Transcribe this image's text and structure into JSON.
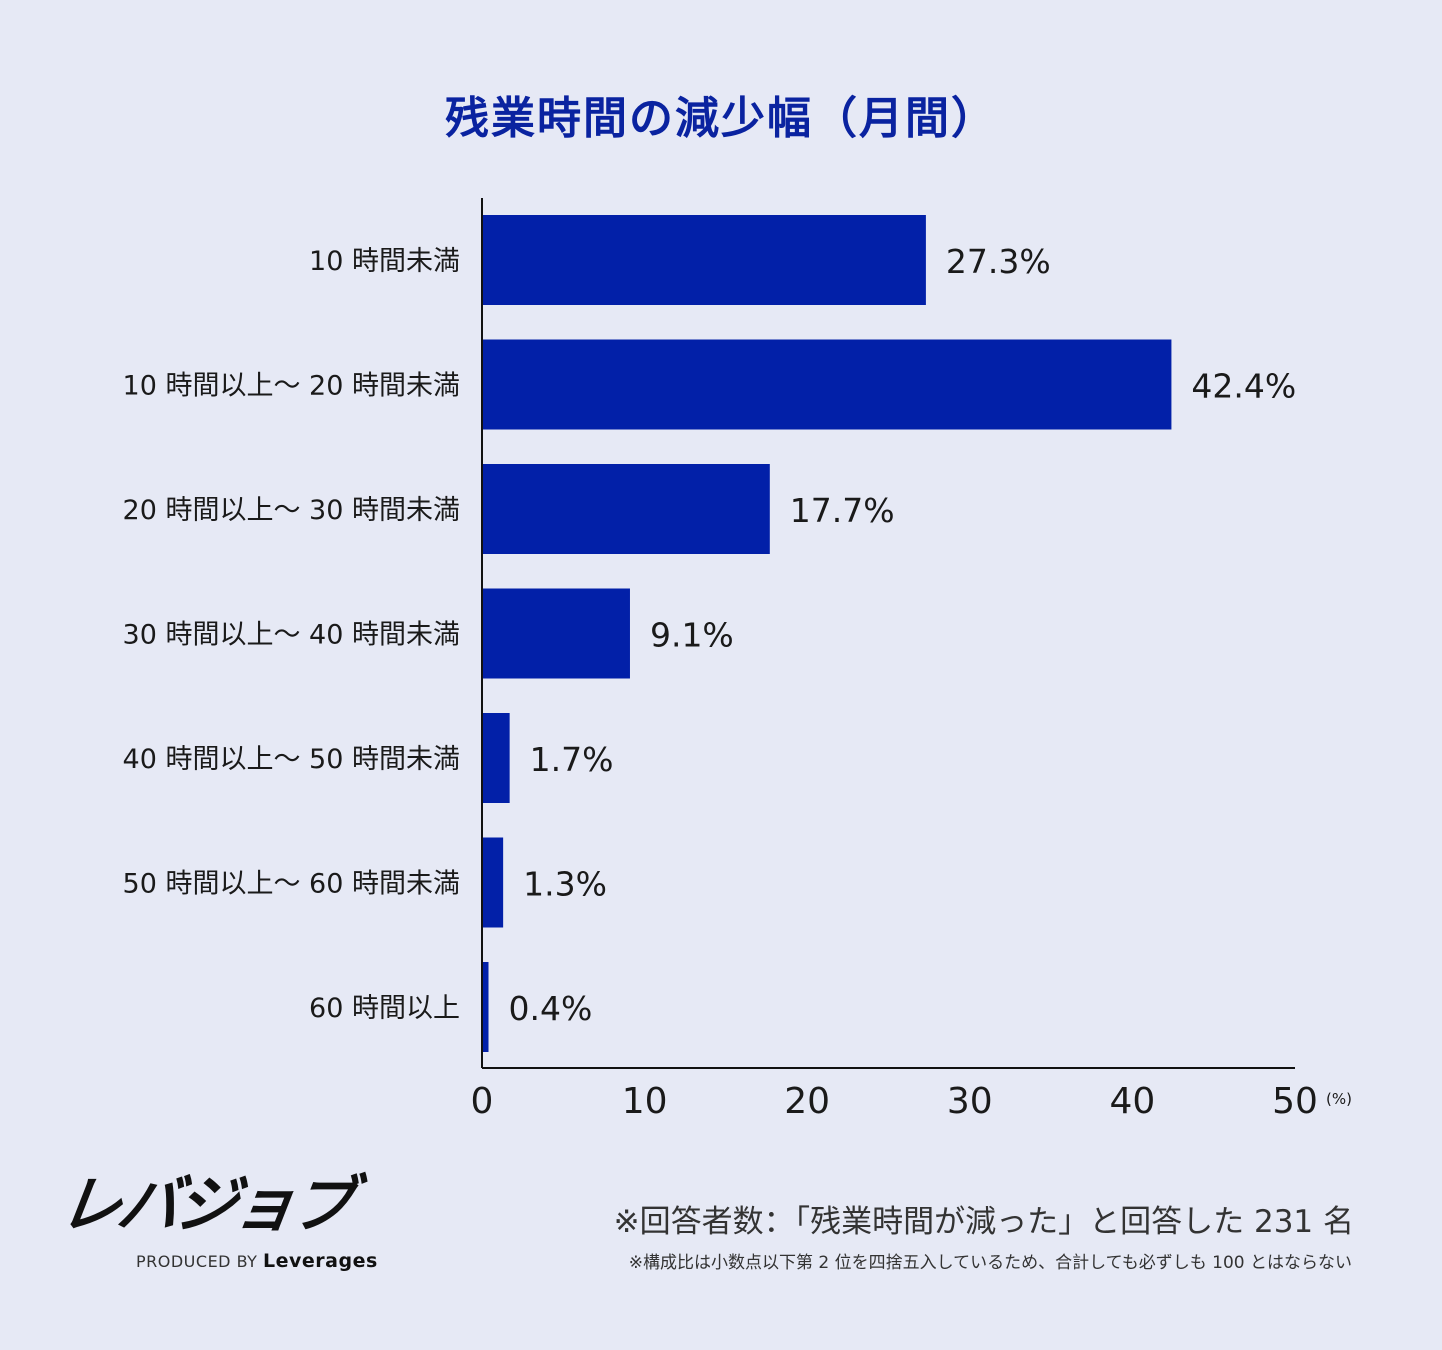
{
  "chart_data": {
    "type": "bar",
    "orientation": "horizontal",
    "title": "残業時間の減少幅（月間）",
    "categories": [
      "10 時間未満",
      "10 時間以上〜 20 時間未満",
      "20 時間以上〜 30 時間未満",
      "30 時間以上〜 40 時間未満",
      "40 時間以上〜 50 時間未満",
      "50 時間以上〜 60 時間未満",
      "60 時間以上"
    ],
    "values": [
      27.3,
      42.4,
      17.7,
      9.1,
      1.7,
      1.3,
      0.4
    ],
    "value_labels": [
      "27.3%",
      "42.4%",
      "17.7%",
      "9.1%",
      "1.7%",
      "1.3%",
      "0.4%"
    ],
    "xlim": [
      0,
      50
    ],
    "xticks": [
      0,
      10,
      20,
      30,
      40,
      50
    ],
    "xunit": "(%)",
    "grid": false,
    "bar_color": "#0220a8",
    "title_color": "#0a23a0",
    "background": "#e6e9f5"
  },
  "footer": {
    "logo": "レバジョブ",
    "produced_by": "PRODUCED BY",
    "company": "Leverages",
    "note_main": "※回答者数：「残業時間が減った」と回答した 231 名",
    "note_sub": "※構成比は小数点以下第 2 位を四捨五入しているため、合計しても必ずしも 100 とはならない"
  }
}
